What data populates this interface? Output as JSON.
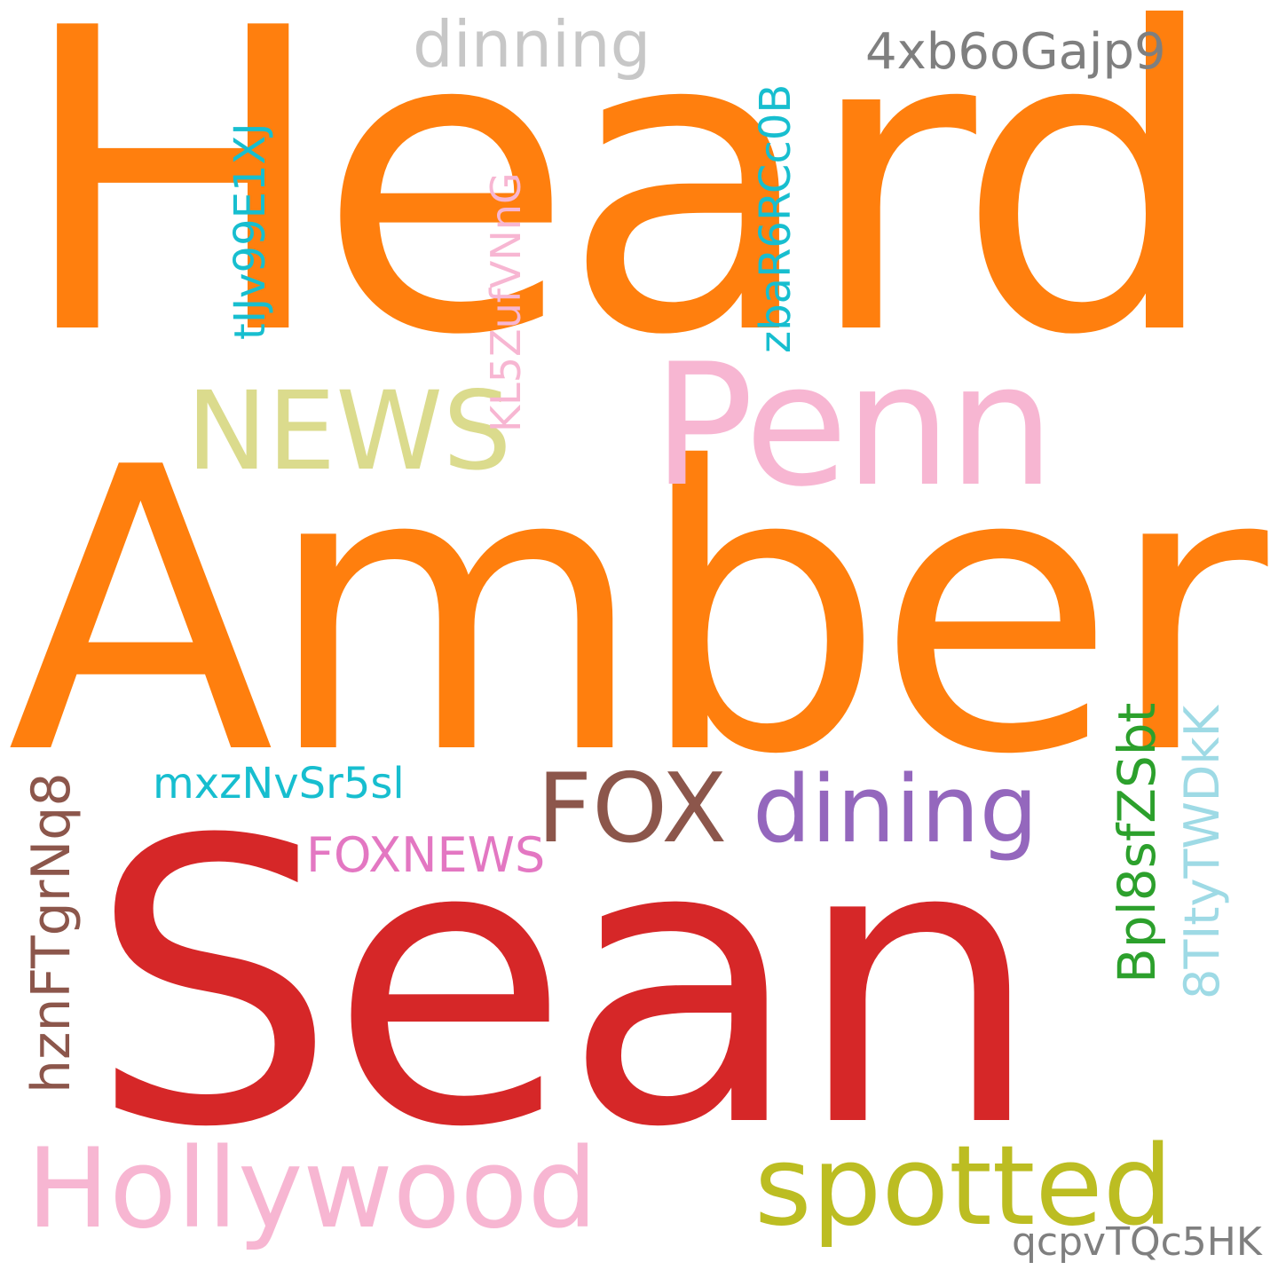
{
  "words": [
    {
      "id": "heard",
      "text": "Heard",
      "color": "#ff7f0e"
    },
    {
      "id": "amber",
      "text": "Amber",
      "color": "#ff7f0e"
    },
    {
      "id": "sean",
      "text": "Sean",
      "color": "#d62728"
    },
    {
      "id": "penn",
      "text": "Penn",
      "color": "#f7b6d2"
    },
    {
      "id": "news",
      "text": "NEWS",
      "color": "#dbdb8d"
    },
    {
      "id": "dinning",
      "text": "dinning",
      "color": "#c7c7c7"
    },
    {
      "id": "4xb6ogajp9",
      "text": "4xb6oGajp9",
      "color": "#7f7f7f"
    },
    {
      "id": "tijv99e1xj",
      "text": "tIJv99E1XJ",
      "color": "#17becf"
    },
    {
      "id": "kl5zufvnng",
      "text": "KL5ZufVNnG",
      "color": "#f7b6d2"
    },
    {
      "id": "zbar6rcc0b",
      "text": "zbaR6RCc0B",
      "color": "#17becf"
    },
    {
      "id": "fox",
      "text": "FOX",
      "color": "#8c564b"
    },
    {
      "id": "dining",
      "text": "dining",
      "color": "#9467bd"
    },
    {
      "id": "mxznvsr5sl",
      "text": "mxzNvSr5sl",
      "color": "#17becf"
    },
    {
      "id": "foxnews",
      "text": "FOXNEWS",
      "color": "#e377c2"
    },
    {
      "id": "hznftgrnq8",
      "text": "hznFTgrNq8",
      "color": "#8c564b"
    },
    {
      "id": "bpl8sfzsbt",
      "text": "Bpl8sfZSbt",
      "color": "#2ca02c"
    },
    {
      "id": "8titytwdkk",
      "text": "8TItyTWDkK",
      "color": "#9edae5"
    },
    {
      "id": "hollywood",
      "text": "Hollywood",
      "color": "#f7b6d2"
    },
    {
      "id": "spotted",
      "text": "spotted",
      "color": "#bcbd22"
    },
    {
      "id": "qcpvtqc5hk",
      "text": "qcpvTQc5HK",
      "color": "#7f7f7f"
    }
  ]
}
